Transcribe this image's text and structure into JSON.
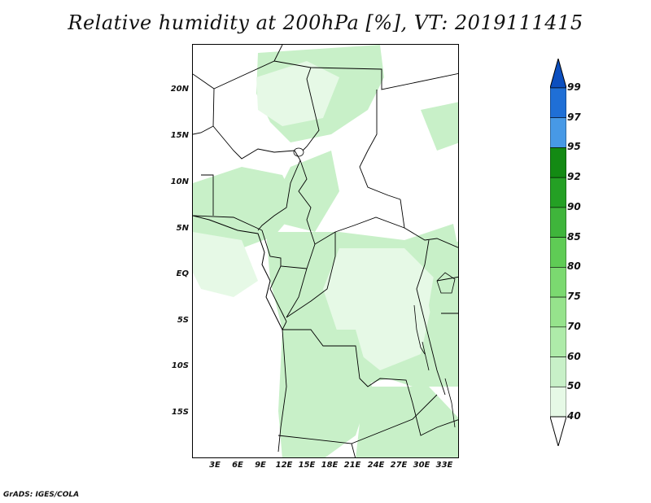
{
  "title": "Relative humidity at 200hPa [%], VT: 2019111415",
  "footer": "GrADS: IGES/COLA",
  "map": {
    "lat_labels": [
      "20N",
      "15N",
      "10N",
      "5N",
      "EQ",
      "5S",
      "10S",
      "15S"
    ],
    "lon_labels": [
      "3E",
      "6E",
      "9E",
      "12E",
      "15E",
      "18E",
      "21E",
      "24E",
      "27E",
      "30E",
      "33E"
    ],
    "land_color": "#ffffff",
    "border_color": "#000000"
  },
  "colorbar": {
    "levels": [
      "40",
      "50",
      "60",
      "70",
      "75",
      "80",
      "85",
      "90",
      "92",
      "95",
      "97",
      "99"
    ],
    "colors": [
      "#ffffff",
      "#e6f9e6",
      "#c8f0c8",
      "#aeeba9",
      "#96e38c",
      "#7bd970",
      "#5fcc55",
      "#3fb53b",
      "#24a024",
      "#138a13",
      "#4799e6",
      "#1f6fd6",
      "#0c4fbf"
    ]
  }
}
